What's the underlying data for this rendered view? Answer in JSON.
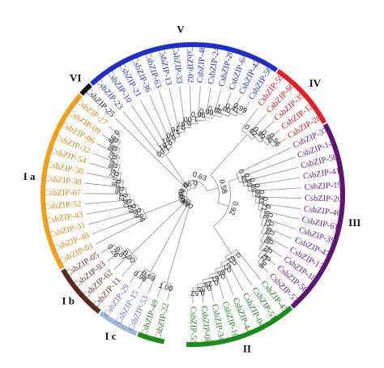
{
  "leaves": [
    {
      "label": "CsbZIP-55",
      "group": "II"
    },
    {
      "label": "CsbZIP-08",
      "group": "II"
    },
    {
      "label": "CsbZIP-34",
      "group": "II"
    },
    {
      "label": "CsbZIP-16",
      "group": "II"
    },
    {
      "label": "CsbZIP-44",
      "group": "II"
    },
    {
      "label": "CsbZIP-04",
      "group": "II"
    },
    {
      "label": "CsbZIP-51",
      "group": "II"
    },
    {
      "label": "CsbZIP-45",
      "group": "II"
    },
    {
      "label": "CsbZIP-57",
      "group": "III"
    },
    {
      "label": "CsbZIP-56",
      "group": "III"
    },
    {
      "label": "CsbZIP-18",
      "group": "III"
    },
    {
      "label": "CsbZIP-17",
      "group": "III"
    },
    {
      "label": "CsbZIP-47",
      "group": "III"
    },
    {
      "label": "CsbZIP-39",
      "group": "III"
    },
    {
      "label": "CsbZIP-61",
      "group": "III"
    },
    {
      "label": "CsbZIP-46",
      "group": "III"
    },
    {
      "label": "CsbZIP-20",
      "group": "III"
    },
    {
      "label": "CsbZIP-19",
      "group": "III"
    },
    {
      "label": "CsbZIP-41",
      "group": "III"
    },
    {
      "label": "CsbZIP-58",
      "group": "III"
    },
    {
      "label": "CsbZIP-14",
      "group": "III"
    },
    {
      "label": "CsbZIP-37",
      "group": "III"
    },
    {
      "label": "CsbZIP-28",
      "group": "IV"
    },
    {
      "label": "CsbZIP-12",
      "group": "IV"
    },
    {
      "label": "CsbZIP-35",
      "group": "IV"
    },
    {
      "label": "CsbZIP-60",
      "group": "IV"
    },
    {
      "label": "CsbZIP-59",
      "group": "IV"
    },
    {
      "label": "CsbZIP-50",
      "group": "V"
    },
    {
      "label": "CsbZIP-42",
      "group": "V"
    },
    {
      "label": "CsbZIP-64",
      "group": "V"
    },
    {
      "label": "CsbZIP-26",
      "group": "V"
    },
    {
      "label": "CsbZIP-24",
      "group": "V"
    },
    {
      "label": "CsbZIP-48",
      "group": "V"
    },
    {
      "label": "CsbZIP-02",
      "group": "V"
    },
    {
      "label": "CsbZIP-33",
      "group": "V"
    },
    {
      "label": "CsbZIP-13",
      "group": "V"
    },
    {
      "label": "CsbZIP-63",
      "group": "V"
    },
    {
      "label": "CsbZIP-36",
      "group": "V"
    },
    {
      "label": "CsbZIP-21",
      "group": "V"
    },
    {
      "label": "CsbZIP-10",
      "group": "V"
    },
    {
      "label": "CsbZIP-23",
      "group": "V"
    },
    {
      "label": "CsbZIP-25",
      "group": "VI"
    },
    {
      "label": "CsbZIP-27",
      "group": "Ia"
    },
    {
      "label": "CsbZIP-09",
      "group": "Ia"
    },
    {
      "label": "CsbZIP-06",
      "group": "Ia"
    },
    {
      "label": "CsbZIP-32",
      "group": "Ia"
    },
    {
      "label": "CsbZIP-54",
      "group": "Ia"
    },
    {
      "label": "CsbZIP-30",
      "group": "Ia"
    },
    {
      "label": "CsbZIP-38",
      "group": "Ia"
    },
    {
      "label": "CsbZIP-07",
      "group": "Ia"
    },
    {
      "label": "CsbZIP-52",
      "group": "Ia"
    },
    {
      "label": "CsbZIP-43",
      "group": "Ia"
    },
    {
      "label": "CsbZIP-31",
      "group": "Ia"
    },
    {
      "label": "CsbZIP-40",
      "group": "Ia"
    },
    {
      "label": "CsbZIP-01",
      "group": "Ia"
    },
    {
      "label": "CsbZIP-05",
      "group": "Ib"
    },
    {
      "label": "CsbZIP-03",
      "group": "Ib"
    },
    {
      "label": "CsbZIP-62",
      "group": "Ib"
    },
    {
      "label": "CsbZIP-11",
      "group": "Ib"
    },
    {
      "label": "CsbZIP-29",
      "group": "Ic"
    },
    {
      "label": "CsbZIP-15",
      "group": "Ic"
    },
    {
      "label": "CsbZIP-53",
      "group": "Ic"
    },
    {
      "label": "CsbZIP-49",
      "group": "II"
    },
    {
      "label": "CsbZIP-22",
      "group": "II"
    }
  ],
  "groups": [
    {
      "id": "V",
      "label": "V",
      "color": "#1f2fbf"
    },
    {
      "id": "IV",
      "label": "IV",
      "color": "#e0202a"
    },
    {
      "id": "VI",
      "label": "VI",
      "color": "#111111"
    },
    {
      "id": "III",
      "label": "III",
      "color": "#5c1670"
    },
    {
      "id": "Ia",
      "label": "I a",
      "color": "#f0a020"
    },
    {
      "id": "Ib",
      "label": "I b",
      "color": "#5a2a1e"
    },
    {
      "id": "Ic",
      "label": "I c",
      "color": "#9db8d8"
    },
    {
      "id": "II",
      "label": "II",
      "color": "#1f8a1f"
    }
  ],
  "leaf_colors": {
    "V": "#2233aa",
    "IV": "#cc1f1f",
    "VI": "#222222",
    "III": "#6a2080",
    "Ia": "#d98a20",
    "Ib": "#6b3a2a",
    "Ic": "#6a78c0",
    "II": "#2a7a2a"
  },
  "bootstrap": [
    "0.52",
    "0.55",
    "0.29",
    "0.61",
    "0.86",
    "0.57",
    "0.61",
    "0.98",
    "0.42",
    "0.74",
    "0.98",
    "0.94",
    "0.53",
    "0.96",
    "0.71",
    "0.83",
    "0.99",
    "0.89",
    "0.99",
    "0.45",
    "0.96",
    "0.96",
    "0.99",
    "0.92",
    "0.99",
    "0.41",
    "1.00",
    "0.98",
    "0.99",
    "0.96",
    "1.00",
    "0.97",
    "0.76",
    "1.00",
    "0.91",
    "0.81",
    "1.00",
    "0.99",
    "0.36",
    "0.87",
    "0.68",
    "0.62",
    "0.78",
    "0.66",
    "0.42",
    "0.80",
    "0.69",
    "0.99",
    "0.96",
    "0.26",
    "0.87",
    "0.90",
    "0.98",
    "0.69",
    "1.00",
    "0.92",
    "0.58",
    "0.63",
    "0.99",
    "0.98",
    "0.99",
    "0.84",
    "0.90",
    "0.80"
  ]
}
